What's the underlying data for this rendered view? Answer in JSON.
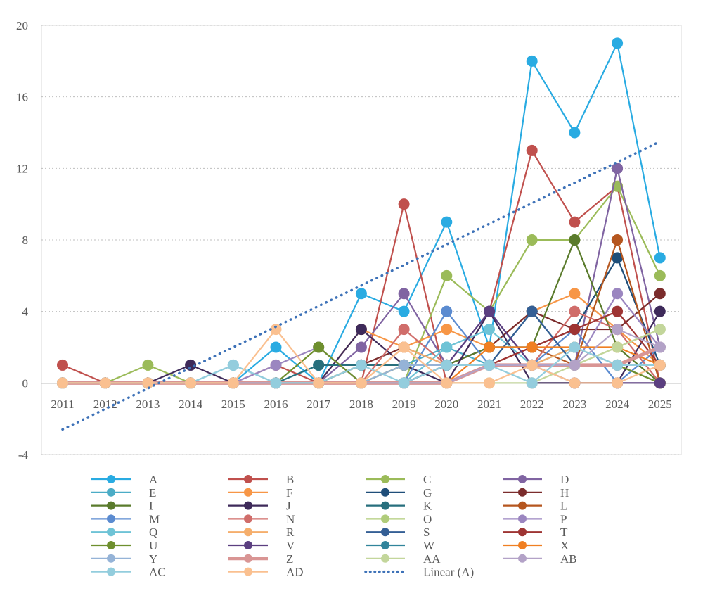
{
  "chart_data": {
    "type": "line",
    "title": "",
    "xlabel": "",
    "ylabel": "",
    "x": [
      "2011",
      "2012",
      "2013",
      "2014",
      "2015",
      "2016",
      "2017",
      "2018",
      "2019",
      "2020",
      "2021",
      "2022",
      "2023",
      "2024",
      "2025"
    ],
    "ylim": [
      -4,
      20
    ],
    "yticks": [
      -4,
      0,
      4,
      8,
      12,
      16,
      20
    ],
    "grid": true,
    "legend_position": "bottom",
    "series": [
      {
        "name": "A",
        "color": "#29ABE2",
        "values": [
          0,
          0,
          0,
          0,
          0,
          2,
          0,
          5,
          4,
          9,
          2,
          18,
          14,
          19,
          7
        ]
      },
      {
        "name": "B",
        "color": "#C0504D",
        "values": [
          1,
          0,
          0,
          0,
          0,
          1,
          0,
          0,
          10,
          0,
          4,
          13,
          9,
          11,
          0
        ]
      },
      {
        "name": "C",
        "color": "#9BBB59",
        "values": [
          0,
          0,
          1,
          0,
          0,
          0,
          0,
          0,
          0,
          6,
          4,
          8,
          8,
          11,
          6
        ]
      },
      {
        "name": "D",
        "color": "#8064A2",
        "values": [
          0,
          0,
          0,
          0,
          0,
          0,
          0,
          2,
          5,
          1,
          4,
          1,
          1,
          12,
          2
        ]
      },
      {
        "name": "E",
        "color": "#4BACC6",
        "values": [
          0,
          0,
          0,
          0,
          1,
          0,
          1,
          1,
          1,
          2,
          1,
          1,
          2,
          1,
          0
        ]
      },
      {
        "name": "F",
        "color": "#F79646",
        "values": [
          0,
          0,
          0,
          0,
          0,
          0,
          0,
          3,
          2,
          3,
          2,
          4,
          5,
          3,
          1
        ]
      },
      {
        "name": "G",
        "color": "#1F4E79",
        "values": [
          0,
          0,
          0,
          0,
          0,
          0,
          0,
          1,
          1,
          1,
          2,
          2,
          3,
          7,
          1
        ]
      },
      {
        "name": "H",
        "color": "#7B2C2C",
        "values": [
          0,
          0,
          0,
          0,
          0,
          0,
          0,
          1,
          2,
          1,
          2,
          4,
          3,
          3,
          5
        ]
      },
      {
        "name": "I",
        "color": "#5A7B2C",
        "values": [
          0,
          0,
          0,
          0,
          0,
          0,
          0,
          1,
          1,
          1,
          2,
          2,
          8,
          2,
          0
        ]
      },
      {
        "name": "J",
        "color": "#3E2A5A",
        "values": [
          0,
          0,
          0,
          1,
          0,
          0,
          0,
          3,
          1,
          0,
          4,
          0,
          0,
          0,
          4
        ]
      },
      {
        "name": "K",
        "color": "#276F7D",
        "values": [
          0,
          0,
          0,
          0,
          0,
          0,
          1,
          1,
          1,
          1,
          1,
          4,
          1,
          1,
          1
        ]
      },
      {
        "name": "L",
        "color": "#B5561F",
        "values": [
          0,
          0,
          0,
          0,
          0,
          0,
          0,
          0,
          1,
          1,
          1,
          2,
          1,
          8,
          0
        ]
      },
      {
        "name": "M",
        "color": "#5B8BD0",
        "values": [
          0,
          0,
          0,
          0,
          0,
          0,
          0,
          0,
          0,
          4,
          1,
          1,
          3,
          0,
          2
        ]
      },
      {
        "name": "N",
        "color": "#D06D6A",
        "values": [
          0,
          0,
          0,
          0,
          0,
          0,
          0,
          0,
          3,
          1,
          1,
          1,
          4,
          3,
          0
        ]
      },
      {
        "name": "O",
        "color": "#B0CC7A",
        "values": [
          0,
          0,
          0,
          0,
          0,
          0,
          0,
          0,
          1,
          1,
          1,
          1,
          1,
          2,
          3
        ]
      },
      {
        "name": "P",
        "color": "#9B86C0",
        "values": [
          0,
          0,
          0,
          0,
          0,
          1,
          2,
          0,
          0,
          0,
          1,
          1,
          1,
          5,
          2
        ]
      },
      {
        "name": "Q",
        "color": "#6EC3D6",
        "values": [
          0,
          0,
          0,
          0,
          0,
          0,
          0,
          0,
          0,
          2,
          3,
          1,
          2,
          1,
          0
        ]
      },
      {
        "name": "R",
        "color": "#F5AE6C",
        "values": [
          0,
          0,
          0,
          0,
          0,
          0,
          0,
          0,
          2,
          1,
          1,
          1,
          2,
          1,
          0
        ]
      },
      {
        "name": "S",
        "color": "#345F95",
        "values": [
          0,
          0,
          0,
          0,
          0,
          0,
          0,
          0,
          0,
          1,
          1,
          4,
          1,
          1,
          1
        ]
      },
      {
        "name": "T",
        "color": "#9E3433",
        "values": [
          0,
          0,
          0,
          0,
          0,
          0,
          0,
          0,
          0,
          1,
          1,
          2,
          3,
          4,
          1
        ]
      },
      {
        "name": "U",
        "color": "#6E8F2E",
        "values": [
          0,
          0,
          0,
          0,
          0,
          0,
          2,
          0,
          1,
          1,
          1,
          1,
          1,
          1,
          0
        ]
      },
      {
        "name": "V",
        "color": "#5B3F80",
        "values": [
          0,
          0,
          0,
          0,
          0,
          0,
          0,
          0,
          0,
          1,
          4,
          1,
          0,
          0,
          0
        ]
      },
      {
        "name": "W",
        "color": "#31849B",
        "values": [
          0,
          0,
          0,
          0,
          0,
          0,
          0,
          0,
          0,
          1,
          1,
          1,
          1,
          1,
          1
        ]
      },
      {
        "name": "X",
        "color": "#F07F22",
        "values": [
          0,
          0,
          0,
          0,
          0,
          0,
          0,
          0,
          0,
          0,
          2,
          2,
          2,
          2,
          1
        ]
      },
      {
        "name": "Y",
        "color": "#95B3D7",
        "values": [
          0,
          0,
          0,
          0,
          0,
          0,
          0,
          0,
          1,
          1,
          1,
          1,
          1,
          1,
          2
        ]
      },
      {
        "name": "Z",
        "color": "#D99594",
        "values": [
          0,
          0,
          0,
          0,
          0,
          0,
          0,
          0,
          0,
          0,
          1,
          1,
          1,
          1,
          2
        ]
      },
      {
        "name": "AA",
        "color": "#C3D69B",
        "values": [
          0,
          0,
          0,
          0,
          0,
          0,
          0,
          0,
          0,
          0,
          0,
          0,
          1,
          2,
          3
        ]
      },
      {
        "name": "AB",
        "color": "#B3A2C7",
        "values": [
          0,
          0,
          0,
          0,
          0,
          0,
          0,
          0,
          0,
          0,
          1,
          1,
          1,
          3,
          2
        ]
      },
      {
        "name": "AC",
        "color": "#93CDDD",
        "values": [
          0,
          0,
          0,
          0,
          1,
          0,
          0,
          1,
          0,
          1,
          1,
          0,
          2,
          1,
          1
        ]
      },
      {
        "name": "AD",
        "color": "#FAC090",
        "values": [
          0,
          0,
          0,
          0,
          0,
          3,
          0,
          0,
          2,
          0,
          0,
          1,
          0,
          0,
          1
        ]
      }
    ],
    "trendline": {
      "name": "Linear (A)",
      "color": "#3E72B8",
      "of_series": "A",
      "start": -2.6,
      "end": 13.5
    }
  }
}
